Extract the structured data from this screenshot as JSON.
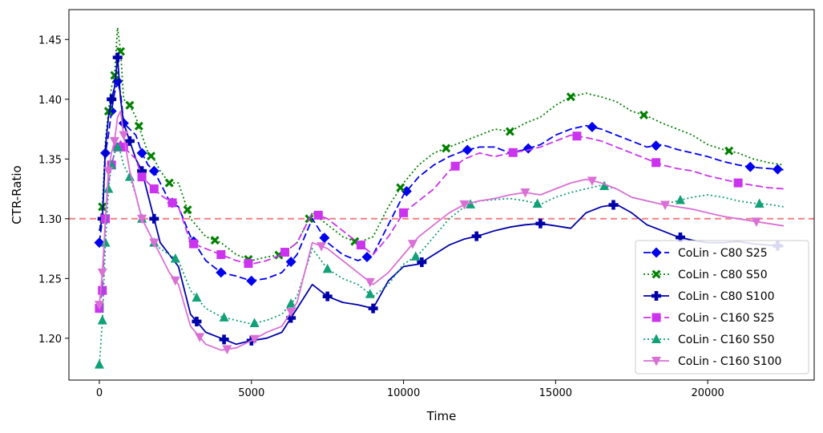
{
  "chart_data": {
    "type": "line",
    "title": "",
    "xlabel": "Time",
    "ylabel": "CTR-Ratio",
    "xlim": [
      -1000,
      23500
    ],
    "ylim": [
      1.165,
      1.475
    ],
    "xticks": [
      0,
      5000,
      10000,
      15000,
      20000
    ],
    "xtick_labels": [
      "0",
      "5000",
      "10000",
      "15000",
      "20000"
    ],
    "yticks": [
      1.2,
      1.25,
      1.3,
      1.35,
      1.4,
      1.45
    ],
    "ytick_labels": [
      "1.20",
      "1.25",
      "1.30",
      "1.35",
      "1.40",
      "1.45"
    ],
    "grid": false,
    "legend_position": "lower-right",
    "reference_line": {
      "y": 1.3,
      "color": "#f08080",
      "style": "dashed"
    },
    "series": [
      {
        "name": "CoLin - C80 S25",
        "color": "#0000ee",
        "dash": "dashed",
        "marker": "diamond",
        "x": [
          0,
          100,
          200,
          300,
          400,
          500,
          600,
          700,
          800,
          1000,
          1200,
          1400,
          1600,
          1800,
          2000,
          2300,
          2600,
          3000,
          3500,
          4000,
          4500,
          5000,
          5500,
          6000,
          6500,
          7000,
          7500,
          8000,
          8500,
          9000,
          9500,
          10000,
          10500,
          11000,
          11500,
          12000,
          12500,
          13000,
          13500,
          14000,
          14500,
          15000,
          15500,
          16000,
          16500,
          17000,
          17500,
          18000,
          18500,
          19000,
          19500,
          20000,
          20500,
          21000,
          21500,
          22000,
          22500
        ],
        "y": [
          1.28,
          1.3,
          1.355,
          1.37,
          1.39,
          1.405,
          1.415,
          1.405,
          1.38,
          1.375,
          1.37,
          1.355,
          1.345,
          1.34,
          1.33,
          1.315,
          1.31,
          1.285,
          1.265,
          1.255,
          1.252,
          1.248,
          1.25,
          1.255,
          1.27,
          1.3,
          1.28,
          1.27,
          1.265,
          1.27,
          1.295,
          1.32,
          1.335,
          1.345,
          1.352,
          1.357,
          1.36,
          1.36,
          1.355,
          1.358,
          1.362,
          1.37,
          1.375,
          1.378,
          1.375,
          1.37,
          1.365,
          1.36,
          1.362,
          1.358,
          1.355,
          1.352,
          1.348,
          1.345,
          1.343,
          1.342,
          1.341
        ],
        "marker_x": [
          0,
          200,
          400,
          600,
          800,
          1400,
          1800,
          2400,
          3100,
          4000,
          5000,
          6300,
          7400,
          8800,
          10100,
          12100,
          14100,
          16200,
          18300,
          21400,
          22300
        ]
      },
      {
        "name": "CoLin - C80 S50",
        "color": "#008000",
        "dash": "dotted",
        "marker": "x",
        "x": [
          0,
          100,
          200,
          300,
          400,
          500,
          600,
          700,
          800,
          1000,
          1200,
          1400,
          1600,
          1800,
          2000,
          2300,
          2600,
          3000,
          3500,
          4000,
          4500,
          5000,
          5500,
          6000,
          6500,
          7000,
          7500,
          8000,
          8500,
          9000,
          9500,
          10000,
          10500,
          11000,
          11500,
          12000,
          12500,
          13000,
          13500,
          14000,
          14500,
          15000,
          15500,
          16000,
          16500,
          17000,
          17500,
          18000,
          18500,
          19000,
          19500,
          20000,
          20500,
          21000,
          21500,
          22000,
          22500
        ],
        "y": [
          1.29,
          1.31,
          1.365,
          1.39,
          1.41,
          1.42,
          1.46,
          1.44,
          1.4,
          1.395,
          1.385,
          1.37,
          1.355,
          1.35,
          1.34,
          1.33,
          1.33,
          1.3,
          1.285,
          1.28,
          1.27,
          1.265,
          1.268,
          1.27,
          1.28,
          1.305,
          1.295,
          1.285,
          1.28,
          1.285,
          1.31,
          1.33,
          1.345,
          1.355,
          1.36,
          1.365,
          1.37,
          1.375,
          1.373,
          1.38,
          1.385,
          1.395,
          1.402,
          1.405,
          1.402,
          1.398,
          1.39,
          1.386,
          1.38,
          1.375,
          1.37,
          1.362,
          1.358,
          1.355,
          1.35,
          1.347,
          1.345
        ],
        "marker_x": [
          100,
          300,
          500,
          700,
          1000,
          1300,
          1700,
          2300,
          2900,
          3800,
          4900,
          5900,
          6900,
          8400,
          9900,
          11400,
          13500,
          15500,
          17900,
          20700
        ]
      },
      {
        "name": "CoLin - C80 S100",
        "color": "#0000aa",
        "dash": "solid",
        "marker": "plus",
        "x": [
          0,
          100,
          200,
          300,
          400,
          500,
          600,
          700,
          800,
          1000,
          1200,
          1400,
          1600,
          1800,
          2000,
          2300,
          2600,
          3000,
          3500,
          4000,
          4500,
          5000,
          5500,
          6000,
          6500,
          7000,
          7500,
          8000,
          8500,
          9000,
          9500,
          10000,
          10500,
          11000,
          11500,
          12000,
          12500,
          13000,
          13500,
          14000,
          14500,
          15000,
          15500,
          16000,
          16500,
          17000,
          17500,
          18000,
          18500,
          19000,
          19500,
          20000,
          20500,
          21000,
          21500,
          22000,
          22500
        ],
        "y": [
          1.29,
          1.3,
          1.36,
          1.385,
          1.4,
          1.41,
          1.435,
          1.4,
          1.38,
          1.365,
          1.35,
          1.34,
          1.32,
          1.3,
          1.28,
          1.27,
          1.26,
          1.22,
          1.205,
          1.2,
          1.195,
          1.198,
          1.2,
          1.205,
          1.225,
          1.245,
          1.235,
          1.23,
          1.228,
          1.225,
          1.248,
          1.26,
          1.262,
          1.27,
          1.278,
          1.283,
          1.286,
          1.29,
          1.293,
          1.295,
          1.296,
          1.294,
          1.292,
          1.305,
          1.31,
          1.312,
          1.305,
          1.295,
          1.29,
          1.285,
          1.282,
          1.28,
          1.28,
          1.281,
          1.279,
          1.278,
          1.277
        ],
        "marker_x": [
          100,
          400,
          600,
          1000,
          1400,
          1800,
          3200,
          4100,
          5000,
          6300,
          7500,
          9000,
          10600,
          12400,
          14500,
          16900,
          19100,
          22300
        ]
      },
      {
        "name": "CoLin - C160 S25",
        "color": "#cc33ee",
        "dash": "dashed",
        "marker": "square",
        "x": [
          0,
          100,
          200,
          300,
          400,
          500,
          600,
          700,
          800,
          1000,
          1200,
          1400,
          1600,
          1800,
          2000,
          2300,
          2600,
          3000,
          3500,
          4000,
          4500,
          5000,
          5500,
          6000,
          6500,
          7000,
          7500,
          8000,
          8500,
          9000,
          9500,
          10000,
          10500,
          11000,
          11500,
          12000,
          12500,
          13000,
          13500,
          14000,
          14500,
          15000,
          15500,
          16000,
          16500,
          17000,
          17500,
          18000,
          18500,
          19000,
          19500,
          20000,
          20500,
          21000,
          21500,
          22000,
          22500
        ],
        "y": [
          1.225,
          1.24,
          1.3,
          1.33,
          1.345,
          1.355,
          1.36,
          1.365,
          1.36,
          1.355,
          1.35,
          1.335,
          1.33,
          1.325,
          1.32,
          1.315,
          1.31,
          1.28,
          1.275,
          1.27,
          1.265,
          1.262,
          1.265,
          1.27,
          1.28,
          1.305,
          1.3,
          1.29,
          1.28,
          1.27,
          1.285,
          1.305,
          1.315,
          1.325,
          1.34,
          1.35,
          1.355,
          1.352,
          1.355,
          1.357,
          1.36,
          1.365,
          1.37,
          1.368,
          1.365,
          1.36,
          1.355,
          1.35,
          1.345,
          1.342,
          1.34,
          1.336,
          1.333,
          1.33,
          1.328,
          1.326,
          1.325
        ],
        "marker_x": [
          0,
          100,
          200,
          400,
          600,
          800,
          1400,
          1800,
          2400,
          3100,
          4000,
          4900,
          6100,
          7200,
          8600,
          10000,
          11700,
          13600,
          15700,
          18300,
          21000
        ]
      },
      {
        "name": "CoLin - C160 S50",
        "color": "#11a077",
        "dash": "dotted",
        "marker": "triangle",
        "x": [
          0,
          100,
          200,
          300,
          400,
          500,
          600,
          700,
          800,
          1000,
          1200,
          1400,
          1600,
          1800,
          2000,
          2300,
          2600,
          3000,
          3500,
          4000,
          4500,
          5000,
          5500,
          6000,
          6500,
          7000,
          7500,
          8000,
          8500,
          9000,
          9500,
          10000,
          10500,
          11000,
          11500,
          12000,
          12500,
          13000,
          13500,
          14000,
          14500,
          15000,
          15500,
          16000,
          16500,
          17000,
          17500,
          18000,
          18500,
          19000,
          19500,
          20000,
          20500,
          21000,
          21500,
          22000,
          22500
        ],
        "y": [
          1.178,
          1.215,
          1.28,
          1.325,
          1.345,
          1.355,
          1.36,
          1.355,
          1.345,
          1.335,
          1.32,
          1.3,
          1.29,
          1.28,
          1.275,
          1.27,
          1.265,
          1.24,
          1.225,
          1.218,
          1.215,
          1.212,
          1.215,
          1.22,
          1.235,
          1.275,
          1.258,
          1.25,
          1.245,
          1.235,
          1.245,
          1.262,
          1.27,
          1.285,
          1.3,
          1.31,
          1.315,
          1.316,
          1.317,
          1.315,
          1.312,
          1.318,
          1.322,
          1.325,
          1.328,
          1.325,
          1.318,
          1.315,
          1.312,
          1.315,
          1.318,
          1.32,
          1.318,
          1.315,
          1.313,
          1.312,
          1.31
        ],
        "marker_x": [
          0,
          100,
          200,
          300,
          400,
          600,
          1000,
          1400,
          1800,
          2500,
          3200,
          4100,
          5100,
          6300,
          7500,
          8900,
          10400,
          12200,
          14400,
          16600,
          19100,
          21700
        ]
      },
      {
        "name": "CoLin - C160 S100",
        "color": "#da70d6",
        "dash": "solid",
        "marker": "triangle-down",
        "x": [
          0,
          100,
          200,
          300,
          400,
          500,
          600,
          700,
          800,
          1000,
          1200,
          1400,
          1600,
          1800,
          2000,
          2300,
          2600,
          3000,
          3500,
          4000,
          4500,
          5000,
          5500,
          6000,
          6500,
          7000,
          7500,
          8000,
          8500,
          9000,
          9500,
          10000,
          10500,
          11000,
          11500,
          12000,
          12500,
          13000,
          13500,
          14000,
          14500,
          15000,
          15500,
          16000,
          16500,
          17000,
          17500,
          18000,
          18500,
          19000,
          19500,
          20000,
          20500,
          21000,
          21500,
          22000,
          22500
        ],
        "y": [
          1.228,
          1.255,
          1.3,
          1.34,
          1.355,
          1.365,
          1.385,
          1.39,
          1.37,
          1.34,
          1.32,
          1.3,
          1.29,
          1.28,
          1.27,
          1.255,
          1.245,
          1.21,
          1.195,
          1.19,
          1.192,
          1.198,
          1.205,
          1.21,
          1.23,
          1.28,
          1.275,
          1.265,
          1.255,
          1.245,
          1.255,
          1.27,
          1.285,
          1.295,
          1.305,
          1.312,
          1.315,
          1.317,
          1.32,
          1.322,
          1.32,
          1.325,
          1.33,
          1.333,
          1.33,
          1.325,
          1.318,
          1.315,
          1.312,
          1.31,
          1.308,
          1.305,
          1.302,
          1.3,
          1.298,
          1.296,
          1.294
        ],
        "marker_x": [
          0,
          100,
          300,
          500,
          800,
          1400,
          1800,
          2500,
          3300,
          4200,
          5100,
          6300,
          7300,
          8900,
          10300,
          12000,
          14000,
          16200,
          18600,
          21600
        ]
      }
    ]
  }
}
